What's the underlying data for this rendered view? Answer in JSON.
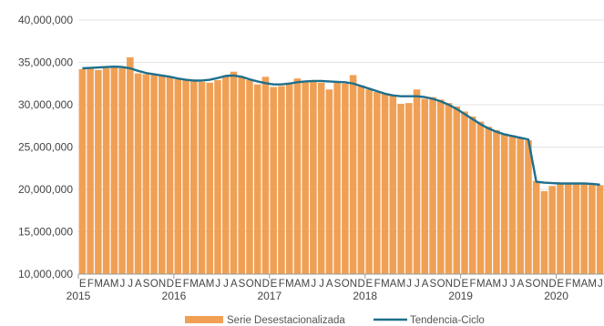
{
  "chart_data": {
    "type": "bar+line",
    "title": "",
    "xlabel": "",
    "ylabel": "",
    "ylim": [
      10000000,
      40000000
    ],
    "yticks": [
      10000000,
      15000000,
      20000000,
      25000000,
      30000000,
      35000000,
      40000000
    ],
    "ytick_labels": [
      "10,000,000",
      "15,000,000",
      "20,000,000",
      "25,000,000",
      "30,000,000",
      "35,000,000",
      "40,000,000"
    ],
    "grid": "horizontal",
    "legend_position": "bottom",
    "month_letters": [
      "E",
      "F",
      "M",
      "A",
      "M",
      "J",
      "J",
      "A",
      "S",
      "O",
      "N",
      "D"
    ],
    "years": [
      "2015",
      "2016",
      "2017",
      "2018",
      "2019",
      "2020"
    ],
    "series": [
      {
        "name": "Serie Desestacionalizada",
        "kind": "bar",
        "color": "#f0a054",
        "values": [
          34200000,
          34400000,
          34100000,
          34300000,
          34400000,
          34300000,
          35600000,
          33700000,
          33600000,
          33500000,
          33400000,
          33300000,
          33000000,
          32900000,
          32800000,
          32700000,
          32600000,
          32900000,
          33400000,
          33900000,
          33300000,
          32900000,
          32400000,
          33300000,
          32100000,
          32200000,
          32500000,
          33100000,
          32800000,
          32900000,
          32600000,
          31800000,
          32600000,
          32500000,
          33500000,
          32300000,
          31800000,
          31500000,
          31300000,
          31100000,
          30100000,
          30200000,
          31800000,
          30700000,
          30900000,
          30600000,
          30200000,
          29800000,
          29200000,
          28600000,
          28000000,
          27400000,
          27000000,
          26600000,
          26400000,
          26100000,
          25800000,
          21000000,
          19800000,
          20400000,
          20700000,
          20700000,
          20700000,
          20700000,
          20600000,
          20500000
        ]
      },
      {
        "name": "Tendencia-Ciclo",
        "kind": "line",
        "color": "#1f6f8b",
        "values": [
          34300000,
          34350000,
          34400000,
          34450000,
          34500000,
          34450000,
          34300000,
          34000000,
          33750000,
          33600000,
          33450000,
          33300000,
          33100000,
          32950000,
          32850000,
          32850000,
          32950000,
          33150000,
          33400000,
          33450000,
          33300000,
          33000000,
          32750000,
          32550000,
          32400000,
          32400000,
          32500000,
          32650000,
          32750000,
          32800000,
          32800000,
          32750000,
          32700000,
          32650000,
          32500000,
          32200000,
          31900000,
          31600000,
          31300000,
          31100000,
          31000000,
          31000000,
          31000000,
          30900000,
          30700000,
          30400000,
          30000000,
          29500000,
          28900000,
          28300000,
          27700000,
          27200000,
          26800000,
          26500000,
          26300000,
          26100000,
          25900000,
          20900000,
          20800000,
          20750000,
          20700000,
          20700000,
          20700000,
          20700000,
          20650000,
          20550000
        ]
      }
    ]
  }
}
